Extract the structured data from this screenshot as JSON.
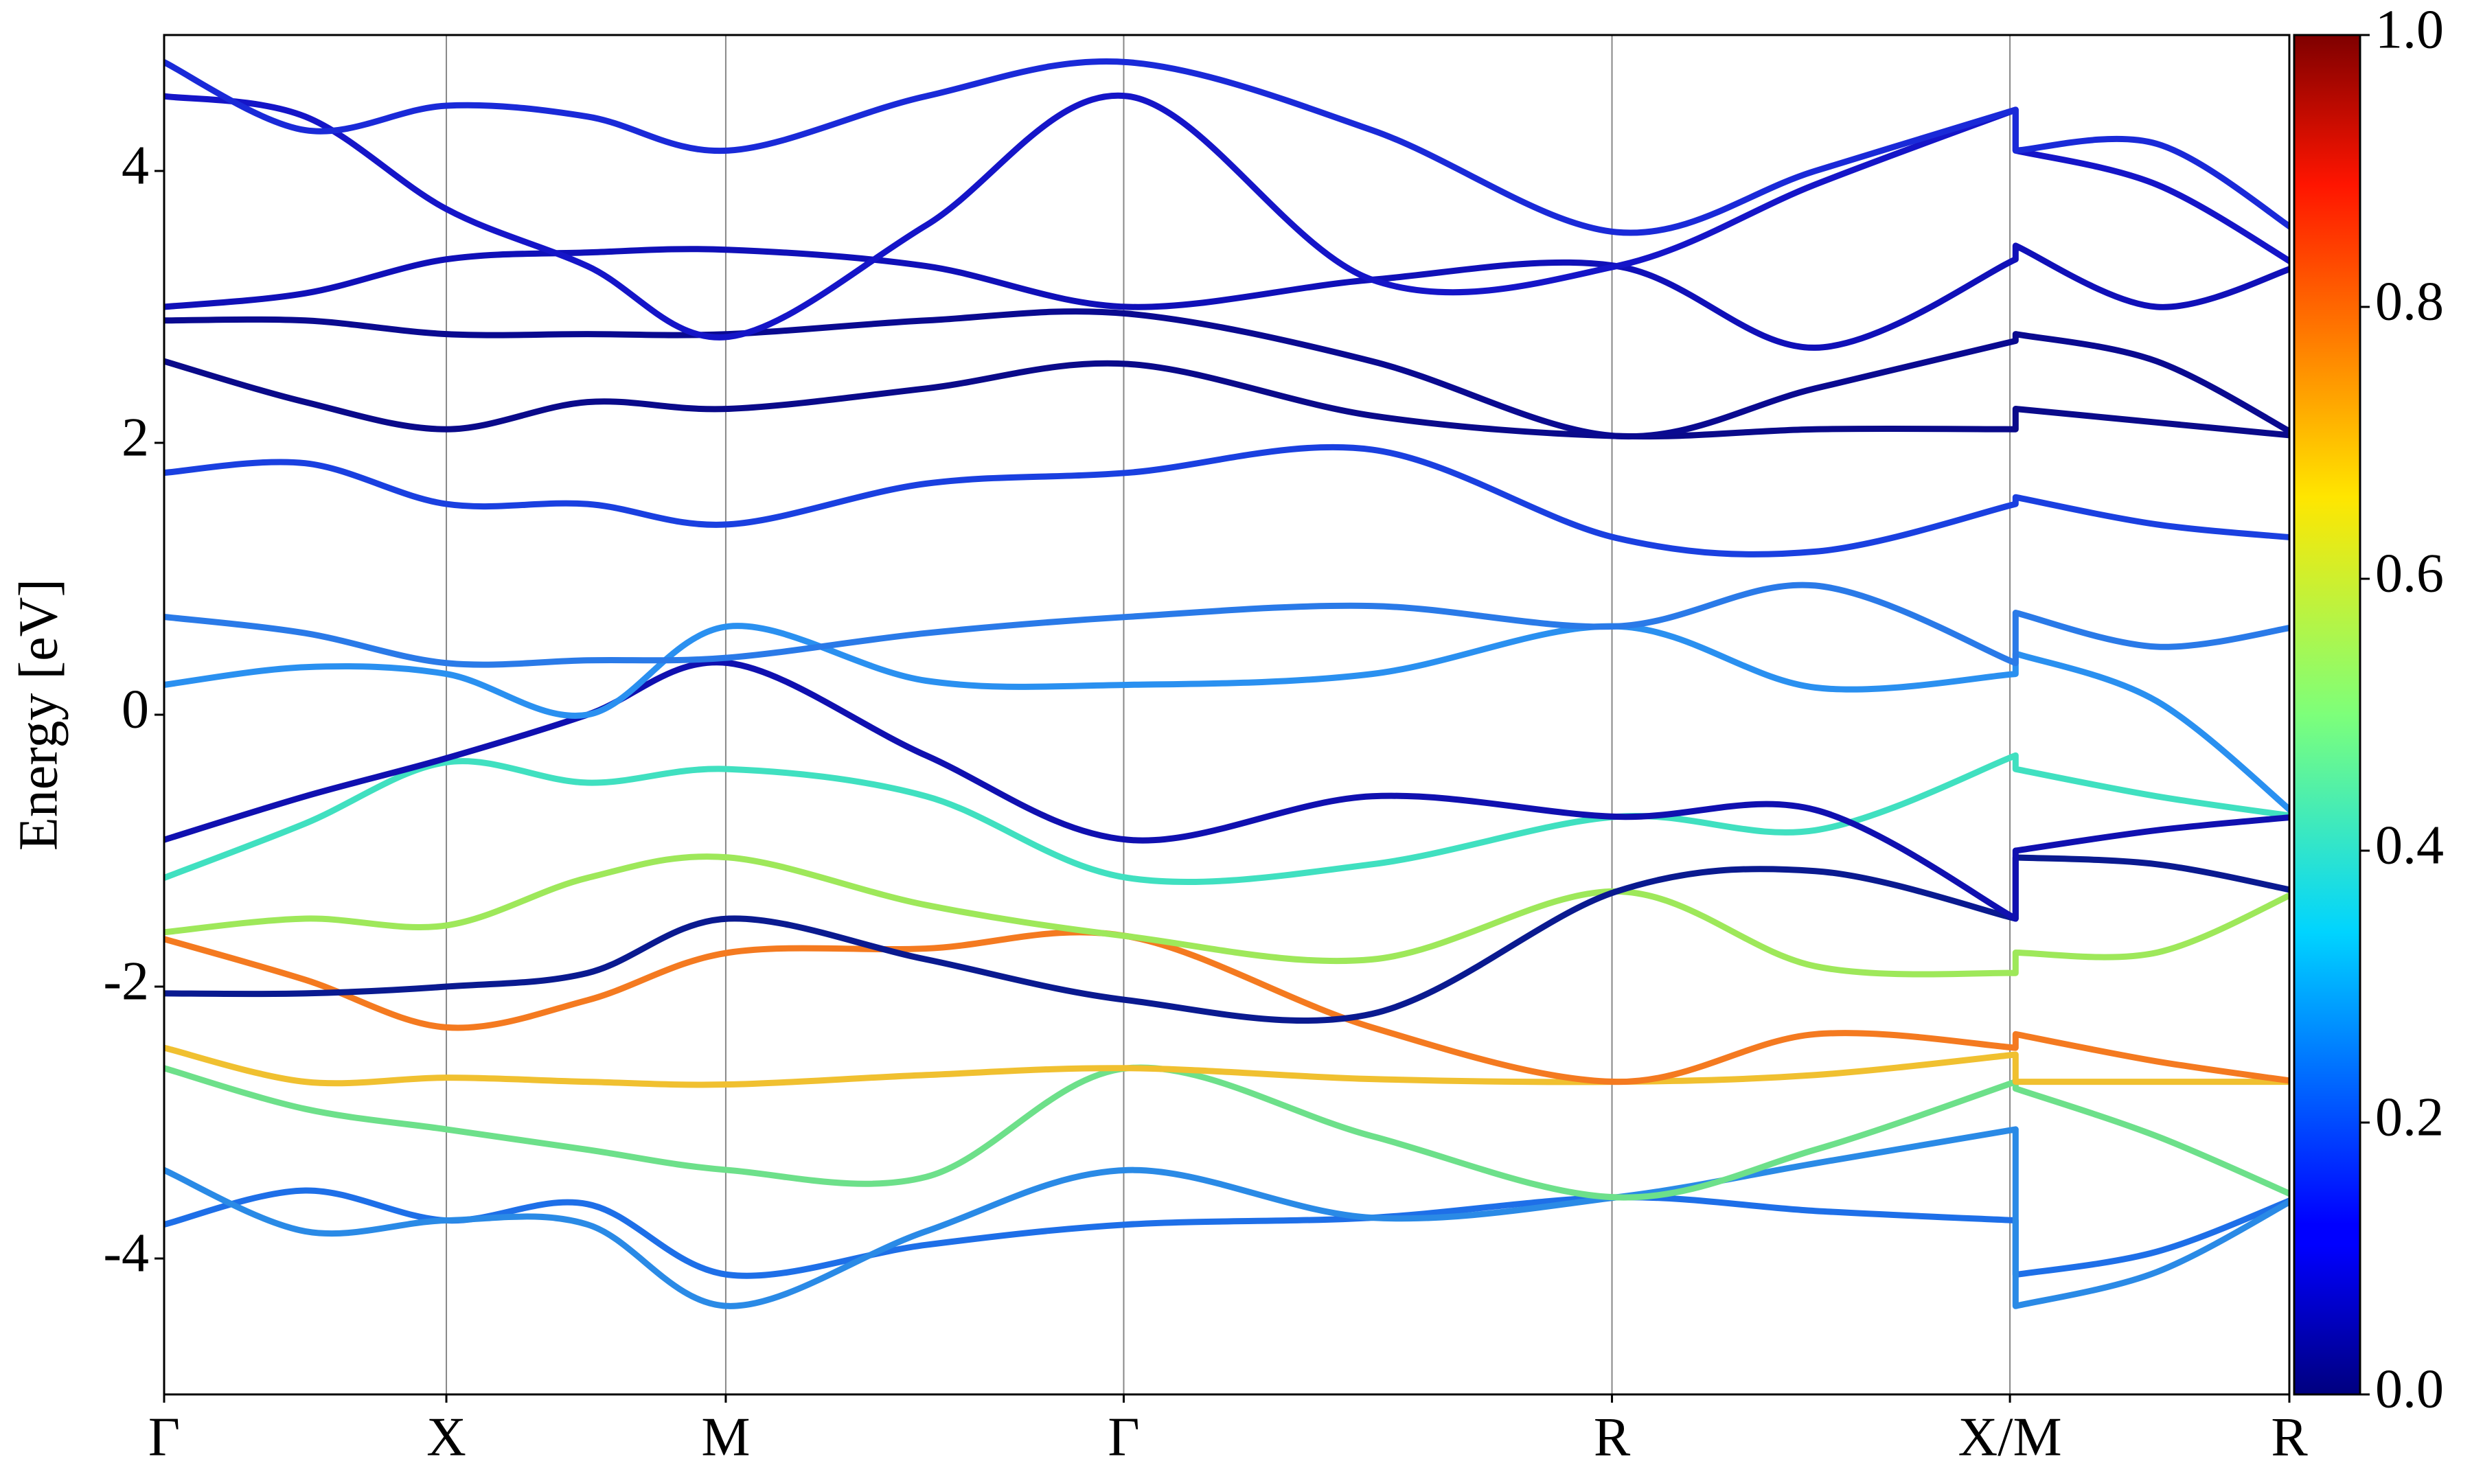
{
  "chart_data": {
    "type": "line",
    "ylabel": "Energy [eV]",
    "x": [
      0,
      0.5,
      1,
      1.5,
      2,
      2.7,
      3.414,
      4.28,
      5.146,
      5.85,
      6.56,
      6.56,
      7.06,
      7.56
    ],
    "xlim": [
      0,
      7.53
    ],
    "xticks": [
      {
        "value": 0,
        "label": "Γ"
      },
      {
        "value": 1,
        "label": "X"
      },
      {
        "value": 1.99,
        "label": "M"
      },
      {
        "value": 3.4,
        "label": "Γ"
      },
      {
        "value": 5.13,
        "label": "R"
      },
      {
        "value": 6.54,
        "label": "X/M"
      },
      {
        "value": 7.53,
        "label": "R"
      }
    ],
    "ylim": [
      -5,
      5
    ],
    "yticks": [
      -4,
      -2,
      0,
      2,
      4
    ],
    "colormap": "jet",
    "clim": [
      0,
      1
    ],
    "cticks": [
      {
        "value": 0,
        "label": "0.0"
      },
      0.2,
      0.4,
      0.6,
      0.8,
      {
        "value": 1,
        "label": "1.0"
      }
    ],
    "series": [
      {
        "color": "#1e6fe8",
        "values": [
          -3.75,
          -3.5,
          -3.72,
          -3.6,
          -4.12,
          -3.9,
          -3.75,
          -3.7,
          -3.55,
          -3.65,
          -3.72,
          -4.12,
          -3.95,
          -3.55
        ]
      },
      {
        "color": "#2a8ae6",
        "values": [
          -3.35,
          -3.8,
          -3.72,
          -3.75,
          -4.35,
          -3.8,
          -3.35,
          -3.7,
          -3.55,
          -3.3,
          -3.05,
          -4.35,
          -4.1,
          -3.55
        ]
      },
      {
        "color": "#6de08a",
        "values": [
          -2.6,
          -2.9,
          -3.05,
          -3.2,
          -3.35,
          -3.4,
          -2.6,
          -3.1,
          -3.55,
          -3.2,
          -2.7,
          -2.75,
          -3.1,
          -3.55
        ]
      },
      {
        "color": "#f0c030",
        "values": [
          -2.45,
          -2.7,
          -2.67,
          -2.7,
          -2.72,
          -2.65,
          -2.6,
          -2.68,
          -2.7,
          -2.65,
          -2.5,
          -2.7,
          -2.7,
          -2.7
        ]
      },
      {
        "color": "#f47a20",
        "values": [
          -1.65,
          -1.95,
          -2.3,
          -2.1,
          -1.75,
          -1.72,
          -1.63,
          -2.3,
          -2.7,
          -2.35,
          -2.45,
          -2.35,
          -2.55,
          -2.7
        ]
      },
      {
        "color": "#9ee85a",
        "values": [
          -1.6,
          -1.5,
          -1.55,
          -1.2,
          -1.05,
          -1.4,
          -1.63,
          -1.8,
          -1.3,
          -1.85,
          -1.9,
          -1.75,
          -1.75,
          -1.3
        ]
      },
      {
        "color": "#0a1a90",
        "values": [
          -2.05,
          -2.05,
          -2.0,
          -1.9,
          -1.5,
          -1.8,
          -2.1,
          -2.2,
          -1.3,
          -1.15,
          -1.5,
          -1.05,
          -1.1,
          -1.3
        ]
      },
      {
        "color": "#40e0c0",
        "values": [
          -1.2,
          -0.8,
          -0.35,
          -0.5,
          -0.4,
          -0.6,
          -1.2,
          -1.1,
          -0.75,
          -0.85,
          -0.3,
          -0.4,
          -0.6,
          -0.75
        ]
      },
      {
        "color": "#1010b0",
        "values": [
          -0.92,
          -0.6,
          -0.32,
          0.0,
          0.38,
          -0.3,
          -0.92,
          -0.6,
          -0.75,
          -0.7,
          -1.5,
          -1.0,
          -0.85,
          -0.75
        ]
      },
      {
        "color": "#2a90f0",
        "values": [
          0.22,
          0.35,
          0.3,
          0.0,
          0.65,
          0.25,
          0.22,
          0.3,
          0.65,
          0.2,
          0.3,
          0.45,
          0.1,
          -0.75
        ]
      },
      {
        "color": "#2a7ae8",
        "values": [
          0.72,
          0.6,
          0.38,
          0.4,
          0.42,
          0.6,
          0.72,
          0.8,
          0.65,
          0.95,
          0.38,
          0.75,
          0.5,
          0.65
        ]
      },
      {
        "color": "#1a40e0",
        "values": [
          1.78,
          1.85,
          1.55,
          1.55,
          1.4,
          1.7,
          1.78,
          1.95,
          1.3,
          1.2,
          1.55,
          1.6,
          1.4,
          1.3
        ]
      },
      {
        "color": "#0a0a8a",
        "values": [
          2.6,
          2.3,
          2.1,
          2.3,
          2.25,
          2.4,
          2.58,
          2.2,
          2.05,
          2.1,
          2.1,
          2.25,
          2.15,
          2.05
        ]
      },
      {
        "color": "#0a0a90",
        "values": [
          2.9,
          2.9,
          2.8,
          2.8,
          2.8,
          2.9,
          2.95,
          2.6,
          2.05,
          2.4,
          2.75,
          2.8,
          2.6,
          2.05
        ]
      },
      {
        "color": "#1010b8",
        "values": [
          3.0,
          3.1,
          3.35,
          3.4,
          3.42,
          3.3,
          3.0,
          3.2,
          3.3,
          2.7,
          3.35,
          3.45,
          3.0,
          3.3
        ]
      },
      {
        "color": "#1515c8",
        "values": [
          4.55,
          4.4,
          3.72,
          3.3,
          2.78,
          3.6,
          4.55,
          3.2,
          3.3,
          3.9,
          4.45,
          4.15,
          3.9,
          3.3
        ]
      },
      {
        "color": "#1a2ad8",
        "values": [
          4.8,
          4.3,
          4.48,
          4.4,
          4.15,
          4.55,
          4.8,
          4.3,
          3.55,
          4.0,
          4.45,
          4.15,
          4.2,
          3.55
        ]
      }
    ]
  }
}
